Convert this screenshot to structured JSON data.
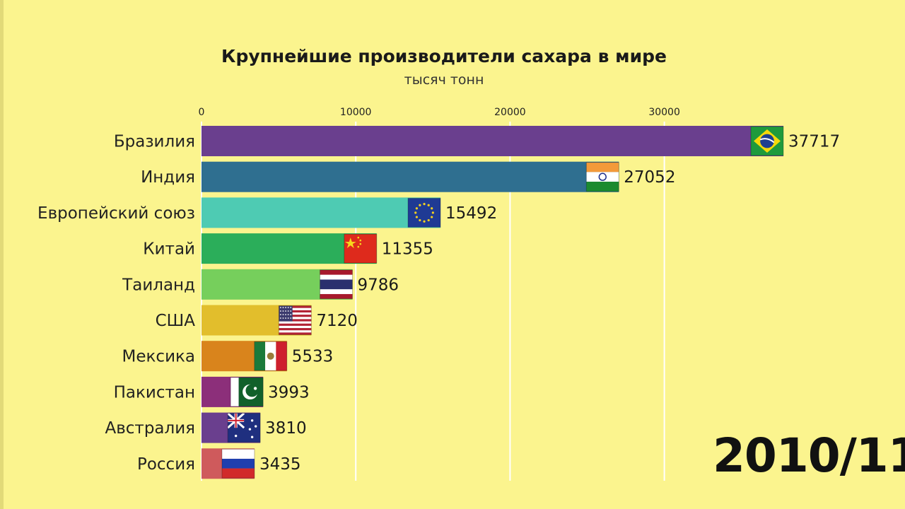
{
  "chart_data": {
    "type": "bar",
    "orientation": "horizontal",
    "title": "Крупнейшие производители сахара в мире",
    "subtitle": "тысяч тонн",
    "xlim": [
      0,
      37717
    ],
    "x_ticks": [
      0,
      10000,
      20000,
      30000
    ],
    "grid": true,
    "period": "2010/11",
    "categories": [
      "Бразилия",
      "Индия",
      "Европейский союз",
      "Китай",
      "Таиланд",
      "США",
      "Мексика",
      "Пакистан",
      "Австралия",
      "Россия"
    ],
    "values": [
      37717,
      27052,
      15492,
      11355,
      9786,
      7120,
      5533,
      3993,
      3810,
      3435
    ],
    "colors": [
      "#6a3f8e",
      "#2f6f90",
      "#4ecbb3",
      "#2bae5a",
      "#76cf5c",
      "#e2be2c",
      "#d9841c",
      "#8c2f7a",
      "#6a3f8e",
      "#cf5a5c"
    ],
    "flags": [
      "brazil-flag-icon",
      "india-flag-icon",
      "eu-flag-icon",
      "china-flag-icon",
      "thailand-flag-icon",
      "usa-flag-icon",
      "mexico-flag-icon",
      "pakistan-flag-icon",
      "australia-flag-icon",
      "russia-flag-icon"
    ]
  }
}
